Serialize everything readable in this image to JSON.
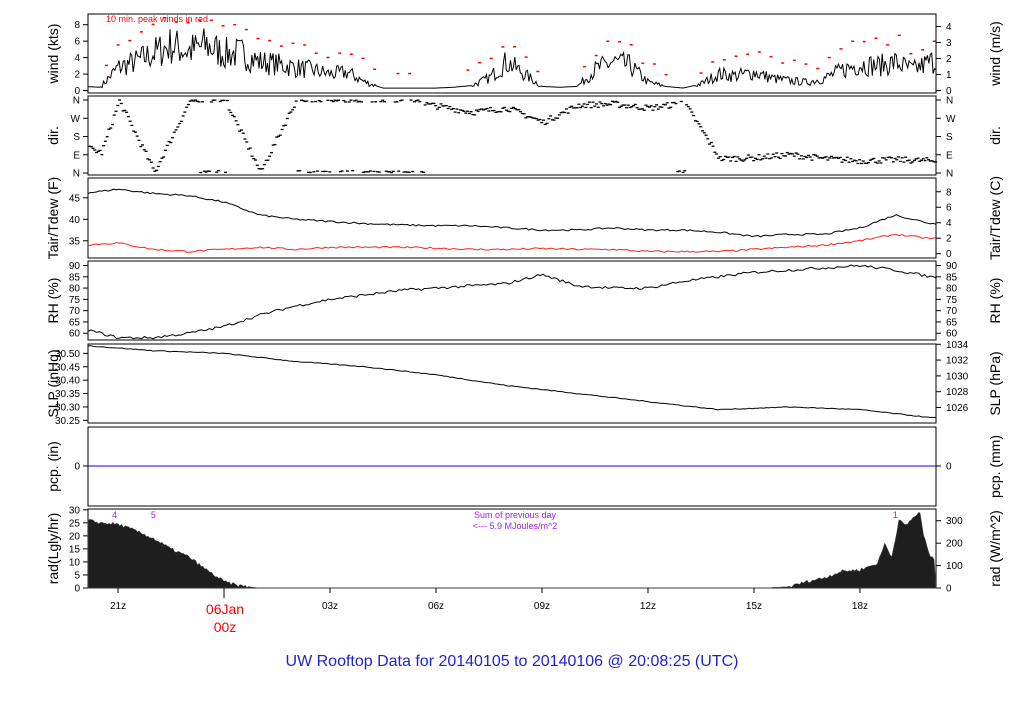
{
  "title": "UW Rooftop Data for 20140105  to  20140106 @ 20:08:25  (UTC)",
  "colors": {
    "title": "#1f1fd6",
    "gust": "#ff0000",
    "dew": "#ff2020",
    "pcp": "#0000ff",
    "annot": "#a020f0",
    "line": "#000000"
  },
  "chart_data": [
    {
      "type": "line",
      "id": "wind",
      "ylabel": "wind (kts)",
      "ylabel_right": "wind (m/s)",
      "annotation": "10 min. peak winds in red",
      "yticks": [
        0,
        2,
        4,
        6,
        8
      ],
      "yticks_right": [
        0,
        1,
        2,
        3,
        4
      ],
      "ylim": [
        -0.3,
        9.3
      ],
      "x_hours": [
        -4,
        -3.5,
        -3,
        -2.5,
        -2,
        -1.5,
        -1,
        -0.5,
        0,
        0.5,
        1,
        1.5,
        2,
        2.5,
        3,
        3.5,
        4,
        4.5,
        5,
        5.5,
        6,
        6.5,
        7,
        7.5,
        8,
        8.5,
        9,
        9.5,
        10,
        10.5,
        11,
        11.5,
        12,
        12.5,
        13,
        13.5,
        14,
        14.5,
        15,
        15.5,
        16,
        16.5,
        17,
        17.5,
        18,
        18.5,
        19,
        19.5,
        20
      ],
      "series": [
        {
          "name": "wind speed",
          "values": [
            0.5,
            0.4,
            2.8,
            3.5,
            4.5,
            5.5,
            4.8,
            5.5,
            4.5,
            4.5,
            3.5,
            3.2,
            2.8,
            2.5,
            2.0,
            2.2,
            1.0,
            0.3,
            0.3,
            0.3,
            0.3,
            0.4,
            0.6,
            1.5,
            3.5,
            2.0,
            0.5,
            0.4,
            0.5,
            2.5,
            3.5,
            3.0,
            1.0,
            0.5,
            0.3,
            0.8,
            2.0,
            1.8,
            2.2,
            1.5,
            1.2,
            1.0,
            1.5,
            2.5,
            3.2,
            3.0,
            3.4,
            2.5,
            3.5
          ]
        }
      ]
    },
    {
      "type": "scatter",
      "id": "dir",
      "ylabel": "dir.",
      "ylabel_right": "dir.",
      "yticks": [
        "N",
        "E",
        "S",
        "W",
        "N"
      ],
      "x_hours": [
        -4,
        -3.5,
        -3,
        -2,
        -1,
        0,
        1,
        2,
        3,
        4,
        5,
        6,
        7,
        8,
        9,
        10,
        11,
        12,
        13,
        14,
        15,
        16,
        17,
        18,
        19,
        20
      ],
      "series": [
        {
          "name": "direction (deg)",
          "values": [
            130,
            100,
            355,
            5,
            355,
            358,
            5,
            355,
            358,
            350,
            355,
            330,
            300,
            320,
            250,
            335,
            340,
            320,
            345,
            70,
            75,
            90,
            70,
            60,
            65,
            60
          ]
        }
      ]
    },
    {
      "type": "line",
      "id": "temp",
      "ylabel": "Tair/Tdew (F)",
      "ylabel_right": "Tair/Tdew (C)",
      "yticks": [
        35,
        40,
        45
      ],
      "yticks_right": [
        0,
        2,
        4,
        6,
        8
      ],
      "ylim": [
        31,
        49.6
      ],
      "x_hours": [
        -4,
        -3,
        -2,
        -1,
        0,
        1,
        2,
        3,
        4,
        5,
        6,
        7,
        8,
        9,
        10,
        11,
        12,
        13,
        14,
        15,
        16,
        17,
        18,
        19,
        20
      ],
      "series": [
        {
          "name": "Tair",
          "values": [
            46,
            47,
            46,
            45.5,
            44,
            41,
            40,
            39.5,
            39,
            38.7,
            38.5,
            38.5,
            38,
            37.5,
            37.5,
            38,
            37.5,
            37.5,
            37,
            36,
            36.5,
            36.5,
            38,
            41,
            39
          ]
        },
        {
          "name": "Tdew",
          "values": [
            34,
            34.5,
            33,
            32.5,
            33,
            33.5,
            33,
            33.5,
            33.5,
            33.5,
            33.3,
            33,
            33,
            33.2,
            33,
            33,
            32.5,
            32.5,
            32.5,
            33,
            33.5,
            34,
            35,
            36.5,
            35.5
          ]
        }
      ]
    },
    {
      "type": "line",
      "id": "rh",
      "ylabel": "RH (%)",
      "ylabel_right": "RH (%)",
      "yticks": [
        60,
        65,
        70,
        75,
        80,
        85,
        90
      ],
      "ylim": [
        57,
        92
      ],
      "x_hours": [
        -4,
        -3,
        -2,
        -1,
        0,
        1,
        2,
        3,
        4,
        5,
        6,
        7,
        8,
        9,
        10,
        11,
        12,
        13,
        14,
        15,
        16,
        17,
        18,
        19,
        20
      ],
      "series": [
        {
          "name": "RH",
          "values": [
            62,
            58,
            58,
            60,
            63,
            68,
            72,
            75,
            77,
            79,
            80,
            81,
            82,
            86,
            81,
            80,
            80,
            83,
            85,
            87,
            88,
            89,
            90,
            88,
            85
          ]
        }
      ]
    },
    {
      "type": "line",
      "id": "slp",
      "ylabel": "SLP (inHg)",
      "ylabel_right": "SLP (hPa)",
      "yticks": [
        30.25,
        30.3,
        30.35,
        30.4,
        30.45,
        30.5
      ],
      "yticks_right": [
        1026,
        1028,
        1030,
        1032,
        1034
      ],
      "ylim": [
        30.24,
        30.535
      ],
      "x_hours": [
        -4,
        -2,
        0,
        2,
        4,
        6,
        8,
        10,
        12,
        14,
        16,
        18,
        20
      ],
      "series": [
        {
          "name": "SLP",
          "values": [
            30.53,
            30.51,
            30.5,
            30.47,
            30.45,
            30.42,
            30.38,
            30.35,
            30.32,
            30.29,
            30.3,
            30.29,
            30.26
          ]
        }
      ]
    },
    {
      "type": "line",
      "id": "pcp",
      "ylabel": "pcp. (in)",
      "ylabel_right": "pcp. (mm)",
      "yticks": [
        0
      ],
      "yticks_right": [
        0
      ],
      "series": [
        {
          "name": "precip",
          "values": [
            0
          ]
        }
      ]
    },
    {
      "type": "area",
      "id": "rad",
      "ylabel": "rad(Lgly/hr)",
      "ylabel_right": "rad (W/m^2)",
      "yticks": [
        0,
        5,
        10,
        15,
        20,
        25,
        30
      ],
      "yticks_right": [
        0,
        100,
        200,
        300
      ],
      "ylim": [
        0,
        30.3
      ],
      "markers": [
        {
          "label": "4",
          "x_hour": -3.1
        },
        {
          "label": "5",
          "x_hour": -2.0
        },
        {
          "label": "1",
          "x_hour": 19.0
        }
      ],
      "annotation": [
        "Sum of previous day",
        "<--- 5.9 MJoules/m^2"
      ],
      "x_hours": [
        -3.85,
        -3.5,
        -3,
        -2.5,
        -2,
        -1.5,
        -1,
        -0.5,
        0,
        0.4,
        1,
        15.5,
        16,
        16.5,
        17,
        17.5,
        18,
        18.5,
        18.7,
        18.9,
        19.1,
        19.3,
        19.5,
        19.7,
        19.8,
        20,
        20.15
      ],
      "series": [
        {
          "name": "radiation",
          "values": [
            26,
            25,
            24.5,
            22,
            19,
            15,
            12,
            7,
            2.5,
            1,
            0,
            0.2,
            0.5,
            2.5,
            4,
            6.5,
            7,
            9.5,
            17,
            12,
            26,
            24,
            27,
            29,
            20,
            12,
            10.5
          ]
        }
      ]
    }
  ],
  "xaxis": {
    "ticks": [
      {
        "label": "21z",
        "h": -3
      },
      {
        "label": "03z",
        "h": 3
      },
      {
        "label": "06z",
        "h": 6
      },
      {
        "label": "09z",
        "h": 9
      },
      {
        "label": "12z",
        "h": 12
      },
      {
        "label": "15z",
        "h": 15
      },
      {
        "label": "18z",
        "h": 18
      }
    ],
    "day_label": "06Jan",
    "day_hour_label": "00z"
  }
}
